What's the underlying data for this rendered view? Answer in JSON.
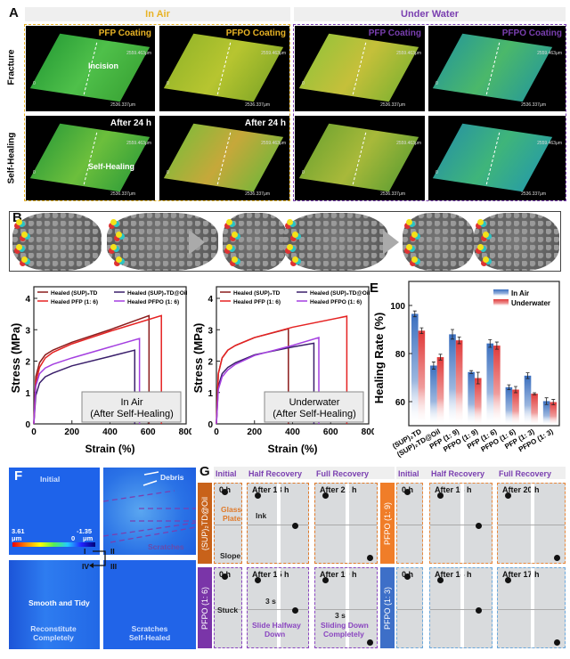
{
  "panelA": {
    "label": "A",
    "in_air": "In Air",
    "under_water": "Under Water",
    "rows": [
      "Fracture",
      "Self-Healing"
    ],
    "colors": {
      "in_air": "#e8b325",
      "under_water": "#7a3fb0"
    },
    "dim_y": "2559.463μm",
    "dim_x": "2536.337μm",
    "origin": "0",
    "tiles": [
      {
        "title": "PFP Coating",
        "note": "Incision",
        "group": "air"
      },
      {
        "title": "PFPO Coating",
        "note": "",
        "group": "air"
      },
      {
        "title": "PFP Coating",
        "note": "",
        "group": "water"
      },
      {
        "title": "PFPO Coating",
        "note": "",
        "group": "water"
      },
      {
        "title": "After 24 h",
        "note": "Self-Healing",
        "group": "air"
      },
      {
        "title": "After 24 h",
        "note": "",
        "group": "air"
      },
      {
        "title": "",
        "note": "",
        "group": "water"
      },
      {
        "title": "",
        "note": "",
        "group": "water"
      }
    ]
  },
  "panelB": {
    "label": "B"
  },
  "chart_data": [
    {
      "panel": "C",
      "type": "line",
      "xlabel": "Strain (%)",
      "ylabel": "Stress (MPa)",
      "xlim": [
        0,
        800
      ],
      "ylim": [
        0,
        4.5
      ],
      "xticks": [
        0,
        200,
        400,
        600,
        800
      ],
      "yticks": [
        0,
        1,
        2,
        3,
        4
      ],
      "annotation": [
        "In Air",
        "(After Self-Healing)"
      ],
      "legend": "top",
      "series": [
        {
          "name": "Healed (SUP)₂TD",
          "color": "#8b1c1c",
          "points": [
            [
              0,
              0
            ],
            [
              10,
              1.5
            ],
            [
              30,
              1.95
            ],
            [
              60,
              2.2
            ],
            [
              100,
              2.35
            ],
            [
              200,
              2.6
            ],
            [
              400,
              3.0
            ],
            [
              605,
              3.45
            ]
          ]
        },
        {
          "name": "Healed (SUP)₂TD@Oil",
          "color": "#3a1f6b",
          "points": [
            [
              0,
              0
            ],
            [
              10,
              0.9
            ],
            [
              30,
              1.3
            ],
            [
              60,
              1.5
            ],
            [
              100,
              1.62
            ],
            [
              200,
              1.85
            ],
            [
              400,
              2.15
            ],
            [
              530,
              2.35
            ]
          ]
        },
        {
          "name": "Healed PFP (1: 6)",
          "color": "#e52222",
          "points": [
            [
              0,
              0
            ],
            [
              10,
              1.3
            ],
            [
              30,
              1.8
            ],
            [
              60,
              2.1
            ],
            [
              100,
              2.28
            ],
            [
              200,
              2.55
            ],
            [
              400,
              2.95
            ],
            [
              670,
              3.45
            ]
          ]
        },
        {
          "name": "Healed PFPO (1: 6)",
          "color": "#a43fe0",
          "points": [
            [
              0,
              0
            ],
            [
              10,
              1.2
            ],
            [
              30,
              1.6
            ],
            [
              60,
              1.78
            ],
            [
              100,
              1.9
            ],
            [
              200,
              2.1
            ],
            [
              400,
              2.45
            ],
            [
              555,
              2.72
            ]
          ]
        }
      ]
    },
    {
      "panel": "D",
      "type": "line",
      "xlabel": "Strain (%)",
      "ylabel": "Stress (MPa)",
      "xlim": [
        0,
        800
      ],
      "ylim": [
        0,
        4.5
      ],
      "xticks": [
        0,
        200,
        400,
        600,
        800
      ],
      "yticks": [
        0,
        1,
        2,
        3,
        4
      ],
      "annotation": [
        "Underwater",
        "(After Self-Healing)"
      ],
      "legend": "top",
      "series": [
        {
          "name": "Healed (SUP)₂TD",
          "color": "#8b1c1c",
          "points": [
            [
              0,
              0
            ],
            [
              10,
              1.6
            ],
            [
              30,
              2.1
            ],
            [
              60,
              2.35
            ],
            [
              100,
              2.5
            ],
            [
              200,
              2.75
            ],
            [
              378,
              3.03
            ]
          ]
        },
        {
          "name": "Healed (SUP)₂TD@Oil",
          "color": "#3a1f6b",
          "points": [
            [
              0,
              0
            ],
            [
              10,
              1.2
            ],
            [
              30,
              1.6
            ],
            [
              60,
              1.8
            ],
            [
              100,
              1.95
            ],
            [
              200,
              2.2
            ],
            [
              400,
              2.45
            ],
            [
              512,
              2.57
            ]
          ]
        },
        {
          "name": "Healed PFP (1: 6)",
          "color": "#e52222",
          "points": [
            [
              0,
              0
            ],
            [
              10,
              1.6
            ],
            [
              30,
              2.1
            ],
            [
              60,
              2.35
            ],
            [
              100,
              2.5
            ],
            [
              200,
              2.75
            ],
            [
              400,
              3.08
            ],
            [
              685,
              3.43
            ]
          ]
        },
        {
          "name": "Healed PFPO (1: 6)",
          "color": "#a43fe0",
          "points": [
            [
              0,
              0
            ],
            [
              10,
              1.1
            ],
            [
              30,
              1.5
            ],
            [
              60,
              1.72
            ],
            [
              100,
              1.9
            ],
            [
              200,
              2.18
            ],
            [
              400,
              2.5
            ],
            [
              538,
              2.75
            ]
          ]
        }
      ]
    },
    {
      "panel": "E",
      "type": "bar",
      "ylabel": "Healing Rate (%)",
      "ylim": [
        50,
        110
      ],
      "yticks": [
        60,
        80,
        100
      ],
      "legend": "top-right",
      "categories": [
        "(SUP)₂TD",
        "(SUP)₂TD@Oil",
        "PFP (1: 9)",
        "PFPO (1: 9)",
        "PFP (1: 6)",
        "PFPO (1: 6)",
        "PFP (1: 3)",
        "PFPO (1: 3)"
      ],
      "series": [
        {
          "name": "In Air",
          "color": "#3a6fbf",
          "values": [
            96.5,
            75,
            88,
            72.3,
            84.2,
            66,
            70.8,
            60.2
          ],
          "errors": [
            1.2,
            1.5,
            2,
            0.6,
            1.6,
            1,
            1.2,
            1.4
          ]
        },
        {
          "name": "Underwater",
          "color": "#e03a3a",
          "values": [
            89.5,
            78.5,
            85.5,
            69.8,
            83.3,
            65,
            63.3,
            59.8
          ],
          "errors": [
            1.2,
            1.2,
            1.4,
            2.4,
            1.5,
            1.3,
            0.4,
            1.1
          ]
        }
      ]
    }
  ],
  "panelF": {
    "label": "F",
    "initial": "Initial",
    "debris": "Debris",
    "scratches": "Scratches",
    "smooth": "Smooth and Tidy",
    "reconstitute": [
      "Reconstitute",
      "Completely"
    ],
    "healed": [
      "Scratches",
      "Self-Healed"
    ],
    "scale_max": "3.61",
    "scale_zero": "0",
    "scale_min": "-1.35",
    "unit": "μm",
    "steps": [
      "I",
      "II",
      "III",
      "IV"
    ]
  },
  "panelG": {
    "label": "G",
    "headers": [
      "Initial",
      "Half Recovery",
      "Full Recovery"
    ],
    "groups": [
      {
        "name": "(SUP)₂TD@Oil",
        "color": "#c8621a",
        "border": "#e07a2a",
        "times": [
          "0 h",
          "After 18 h",
          "After 22 h"
        ]
      },
      {
        "name": "PFPO (1: 9)",
        "color": "#f07d28",
        "border": "#e8873a",
        "times": [
          "0 h",
          "After 16 h",
          "After 20 h"
        ]
      },
      {
        "name": "PFPO (1: 6)",
        "color": "#7a35a8",
        "border": "#8a45c0",
        "times": [
          "0 h",
          "After 15 h",
          "After 19 h"
        ]
      },
      {
        "name": "PFPO (1: 3)",
        "color": "#3d6fc8",
        "border": "#6aa8dc",
        "times": [
          "0 h",
          "After 14 h",
          "After 17 h"
        ]
      }
    ],
    "notes": {
      "glass": [
        "Glass",
        "Plate"
      ],
      "slope": "Slope",
      "ink": "Ink",
      "stuck": "Stuck",
      "t3s": "3 s",
      "half": [
        "Slide Halfway",
        "Down"
      ],
      "full": [
        "Sliding Down",
        "Completely"
      ]
    }
  }
}
